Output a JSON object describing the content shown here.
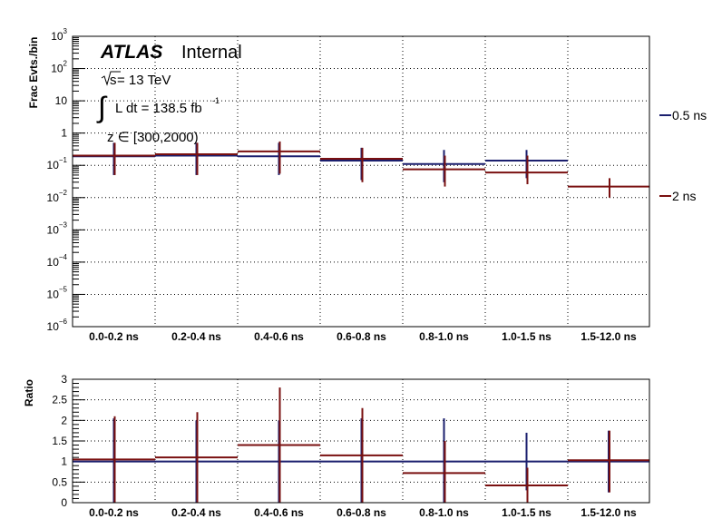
{
  "chart_data": [
    {
      "type": "step",
      "ylabel": "Frac Evts./bin",
      "yscale": "log",
      "ylim": [
        1e-06,
        1000
      ],
      "y_ticks": [
        {
          "value": 1e-06,
          "label": "10",
          "exp": "−6"
        },
        {
          "value": 1e-05,
          "label": "10",
          "exp": "−5"
        },
        {
          "value": 0.0001,
          "label": "10",
          "exp": "−4"
        },
        {
          "value": 0.001,
          "label": "10",
          "exp": "−3"
        },
        {
          "value": 0.01,
          "label": "10",
          "exp": "−2"
        },
        {
          "value": 0.1,
          "label": "10",
          "exp": "−1"
        },
        {
          "value": 1,
          "label": "1",
          "exp": ""
        },
        {
          "value": 10,
          "label": "10",
          "exp": ""
        },
        {
          "value": 100,
          "label": "10",
          "exp": "2"
        },
        {
          "value": 1000,
          "label": "10",
          "exp": "3"
        }
      ],
      "categories": [
        "0.0-0.2 ns",
        "0.2-0.4 ns",
        "0.4-0.6 ns",
        "0.6-0.8 ns",
        "0.8-1.0 ns",
        "1.0-1.5 ns",
        "1.5-12.0 ns"
      ],
      "grid": true,
      "series": [
        {
          "name": "0.5 ns",
          "color": "#1b1f6e",
          "values": [
            0.19,
            0.2,
            0.19,
            0.14,
            0.11,
            0.14,
            null
          ],
          "err_low": [
            0.05,
            0.05,
            0.05,
            0.035,
            0.03,
            0.04,
            null
          ],
          "err_high": [
            0.5,
            0.5,
            0.5,
            0.35,
            0.3,
            0.3,
            null
          ]
        },
        {
          "name": "2 ns",
          "color": "#7a1010",
          "values": [
            0.2,
            0.22,
            0.27,
            0.16,
            0.075,
            0.06,
            0.022
          ],
          "err_low": [
            0.05,
            0.05,
            0.055,
            0.03,
            0.022,
            0.026,
            0.01
          ],
          "err_high": [
            0.5,
            0.5,
            0.55,
            0.35,
            0.2,
            0.2,
            0.04
          ]
        }
      ],
      "annotations": {
        "atlas": "ATLAS",
        "status": "Internal",
        "sqrt_s": "s",
        "energy": " = 13 TeV",
        "lumi_integral": "∫",
        "lumi_text": "L dt = 138.5 fb",
        "lumi_exp": "-1",
        "selection": "z ∈ [300,2000)"
      }
    },
    {
      "type": "step",
      "ylabel": "Ratio",
      "ylim": [
        0,
        3
      ],
      "y_ticks": [
        {
          "value": 0,
          "label": "0"
        },
        {
          "value": 0.5,
          "label": "0.5"
        },
        {
          "value": 1,
          "label": "1"
        },
        {
          "value": 1.5,
          "label": "1.5"
        },
        {
          "value": 2,
          "label": "2"
        },
        {
          "value": 2.5,
          "label": "2.5"
        },
        {
          "value": 3,
          "label": "3"
        }
      ],
      "categories": [
        "0.0-0.2 ns",
        "0.2-0.4 ns",
        "0.4-0.6 ns",
        "0.6-0.8 ns",
        "0.8-1.0 ns",
        "1.0-1.5 ns",
        "1.5-12.0 ns"
      ],
      "grid": true,
      "series": [
        {
          "name": "0.5 ns",
          "color": "#1b1f6e",
          "values": [
            1,
            1,
            1,
            1,
            1,
            1,
            1
          ],
          "err_low": [
            0,
            0,
            0,
            0,
            0,
            0.3,
            0.25
          ],
          "err_high": [
            2.05,
            2.0,
            2.0,
            2.05,
            2.05,
            1.7,
            1.75
          ]
        },
        {
          "name": "2 ns",
          "color": "#7a1010",
          "values": [
            1.05,
            1.1,
            1.4,
            1.15,
            0.72,
            0.42,
            1.03
          ],
          "err_low": [
            0,
            0,
            0,
            0,
            0,
            0,
            0.25
          ],
          "err_high": [
            2.1,
            2.2,
            2.8,
            2.3,
            1.5,
            0.85,
            1.75
          ]
        }
      ]
    }
  ],
  "legend": {
    "items": [
      {
        "label": "0.5 ns",
        "color": "#1b1f6e"
      },
      {
        "label": "2 ns",
        "color": "#7a1010"
      }
    ]
  }
}
